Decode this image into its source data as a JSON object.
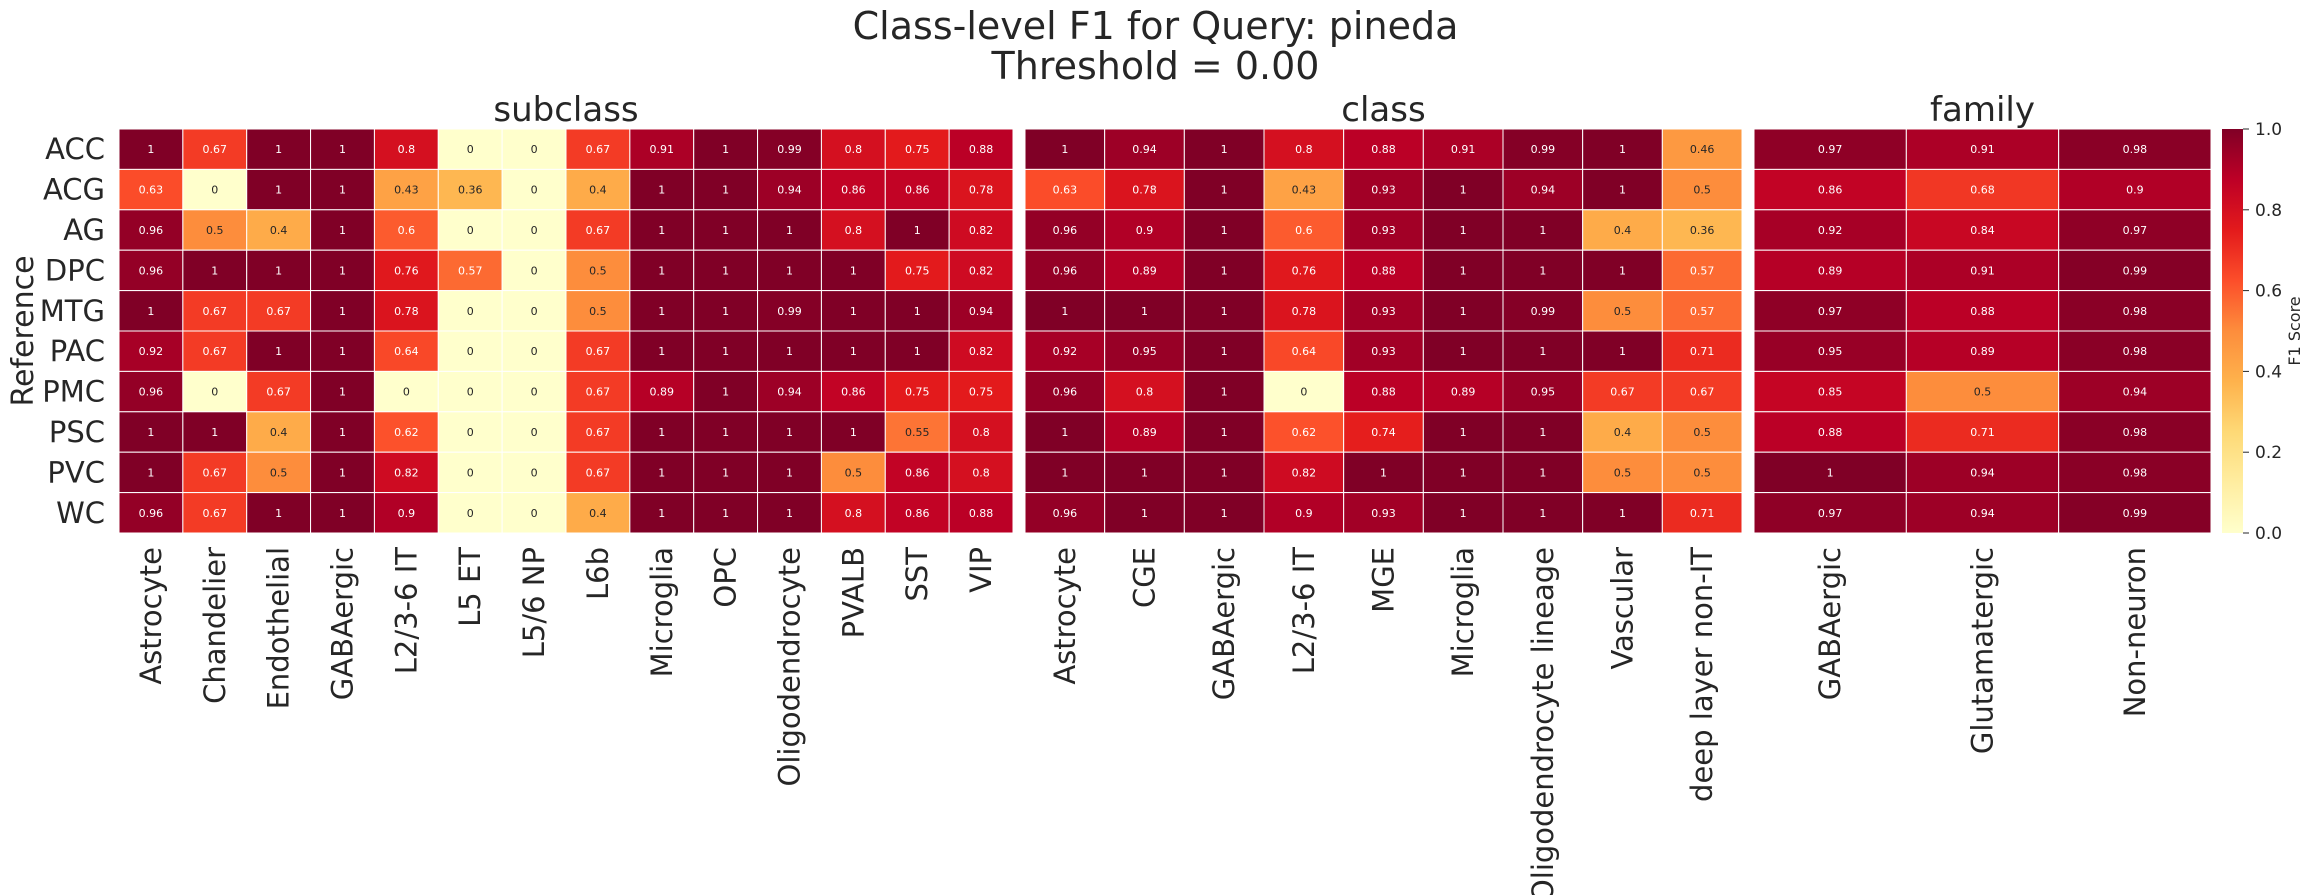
{
  "chart_data": {
    "type": "heatmap",
    "title": "Class-level F1 for Query: pineda",
    "subtitle": "Threshold = 0.00",
    "ylabel": "Reference",
    "rows": [
      "ACC",
      "ACG",
      "AG",
      "DPC",
      "MTG",
      "PAC",
      "PMC",
      "PSC",
      "PVC",
      "WC"
    ],
    "colorbar": {
      "label": "F1 Score",
      "range": [
        0,
        1
      ],
      "ticks": [
        "0.0",
        "0.2",
        "0.4",
        "0.6",
        "0.8",
        "1.0"
      ],
      "colormap": "YlOrRd"
    },
    "panels": [
      {
        "name": "subclass",
        "columns": [
          "Astrocyte",
          "Chandelier",
          "Endothelial",
          "GABAergic",
          "L2/3-6 IT",
          "L5 ET",
          "L5/6 NP",
          "L6b",
          "Microglia",
          "OPC",
          "Oligodendrocyte",
          "PVALB",
          "SST",
          "VIP"
        ],
        "values": [
          [
            1,
            0.67,
            1,
            1,
            0.8,
            0,
            0,
            0.67,
            0.91,
            1,
            0.99,
            0.8,
            0.75,
            0.88
          ],
          [
            0.63,
            0,
            1,
            1,
            0.43,
            0.36,
            0,
            0.4,
            1,
            1,
            0.94,
            0.86,
            0.86,
            0.78
          ],
          [
            0.96,
            0.5,
            0.4,
            1,
            0.6,
            0,
            0,
            0.67,
            1,
            1,
            1,
            0.8,
            1,
            0.82
          ],
          [
            0.96,
            1,
            1,
            1,
            0.76,
            0.57,
            0,
            0.5,
            1,
            1,
            1,
            1,
            0.75,
            0.82
          ],
          [
            1,
            0.67,
            0.67,
            1,
            0.78,
            0,
            0,
            0.5,
            1,
            1,
            0.99,
            1,
            1,
            0.94
          ],
          [
            0.92,
            0.67,
            1,
            1,
            0.64,
            0,
            0,
            0.67,
            1,
            1,
            1,
            1,
            1,
            0.82
          ],
          [
            0.96,
            0,
            0.67,
            1,
            0,
            0,
            0,
            0.67,
            0.89,
            1,
            0.94,
            0.86,
            0.75,
            0.75
          ],
          [
            1,
            1,
            0.4,
            1,
            0.62,
            0,
            0,
            0.67,
            1,
            1,
            1,
            1,
            0.55,
            0.8
          ],
          [
            1,
            0.67,
            0.5,
            1,
            0.82,
            0,
            0,
            0.67,
            1,
            1,
            1,
            0.5,
            0.86,
            0.8
          ],
          [
            0.96,
            0.67,
            1,
            1,
            0.9,
            0,
            0,
            0.4,
            1,
            1,
            1,
            0.8,
            0.86,
            0.88
          ]
        ]
      },
      {
        "name": "class",
        "columns": [
          "Astrocyte",
          "CGE",
          "GABAergic",
          "L2/3-6 IT",
          "MGE",
          "Microglia",
          "Oligodendrocyte lineage",
          "Vascular",
          "deep layer non-IT"
        ],
        "values": [
          [
            1,
            0.94,
            1,
            0.8,
            0.88,
            0.91,
            0.99,
            1,
            0.46
          ],
          [
            0.63,
            0.78,
            1,
            0.43,
            0.93,
            1,
            0.94,
            1,
            0.5
          ],
          [
            0.96,
            0.9,
            1,
            0.6,
            0.93,
            1,
            1,
            0.4,
            0.36
          ],
          [
            0.96,
            0.89,
            1,
            0.76,
            0.88,
            1,
            1,
            1,
            0.57
          ],
          [
            1,
            1,
            1,
            0.78,
            0.93,
            1,
            0.99,
            0.5,
            0.57
          ],
          [
            0.92,
            0.95,
            1,
            0.64,
            0.93,
            1,
            1,
            1,
            0.71
          ],
          [
            0.96,
            0.8,
            1,
            0,
            0.88,
            0.89,
            0.95,
            0.67,
            0.67
          ],
          [
            1,
            0.89,
            1,
            0.62,
            0.74,
            1,
            1,
            0.4,
            0.5
          ],
          [
            1,
            1,
            1,
            0.82,
            1,
            1,
            1,
            0.5,
            0.5
          ],
          [
            0.96,
            1,
            1,
            0.9,
            0.93,
            1,
            1,
            1,
            0.71
          ]
        ]
      },
      {
        "name": "family",
        "columns": [
          "GABAergic",
          "Glutamatergic",
          "Non-neuron"
        ],
        "values": [
          [
            0.97,
            0.91,
            0.98
          ],
          [
            0.86,
            0.68,
            0.9
          ],
          [
            0.92,
            0.84,
            0.97
          ],
          [
            0.89,
            0.91,
            0.99
          ],
          [
            0.97,
            0.88,
            0.98
          ],
          [
            0.95,
            0.89,
            0.98
          ],
          [
            0.85,
            0.5,
            0.94
          ],
          [
            0.88,
            0.71,
            0.98
          ],
          [
            1,
            0.94,
            0.98
          ],
          [
            0.97,
            0.94,
            0.99
          ]
        ]
      }
    ]
  }
}
